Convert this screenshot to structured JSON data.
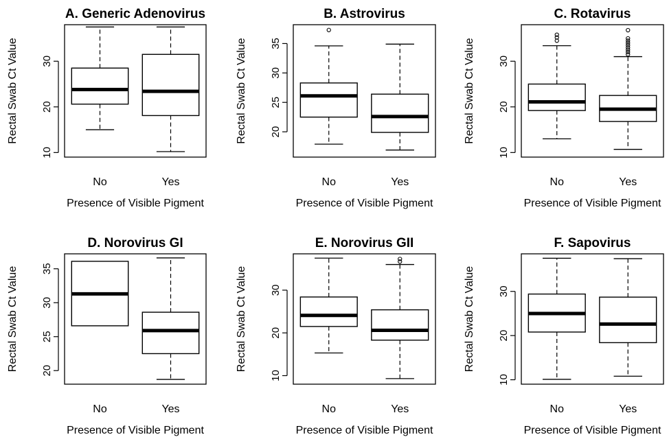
{
  "chart_data": [
    {
      "type": "boxplot",
      "title": "A. Generic Adenovirus",
      "xlabel": "Presence of Visible Pigment",
      "ylabel": "Rectal Swab Ct Value",
      "categories": [
        "No",
        "Yes"
      ],
      "ylim": [
        9,
        38
      ],
      "yticks": [
        10,
        20,
        30
      ],
      "boxes": [
        {
          "category": "No",
          "whisker_low": 15,
          "q1": 20.6,
          "median": 23.8,
          "q3": 28.5,
          "whisker_high": 37.5,
          "outliers": []
        },
        {
          "category": "Yes",
          "whisker_low": 10.2,
          "q1": 18.1,
          "median": 23.4,
          "q3": 31.5,
          "whisker_high": 37.5,
          "outliers": []
        }
      ]
    },
    {
      "type": "boxplot",
      "title": "B. Astrovirus",
      "xlabel": "Presence of Visible Pigment",
      "ylabel": "Rectal Swab Ct Value",
      "categories": [
        "No",
        "Yes"
      ],
      "ylim": [
        15.7,
        38.2
      ],
      "yticks": [
        20,
        25,
        30,
        35
      ],
      "boxes": [
        {
          "category": "No",
          "whisker_low": 17.9,
          "q1": 22.5,
          "median": 26.1,
          "q3": 28.3,
          "whisker_high": 34.6,
          "outliers": [
            37.3
          ]
        },
        {
          "category": "Yes",
          "whisker_low": 16.9,
          "q1": 19.9,
          "median": 22.6,
          "q3": 26.4,
          "whisker_high": 34.9,
          "outliers": []
        }
      ]
    },
    {
      "type": "boxplot",
      "title": "C. Rotavirus",
      "xlabel": "Presence of Visible Pigment",
      "ylabel": "Rectal Swab Ct Value",
      "categories": [
        "No",
        "Yes"
      ],
      "ylim": [
        9,
        38
      ],
      "yticks": [
        10,
        20,
        30
      ],
      "boxes": [
        {
          "category": "No",
          "whisker_low": 13,
          "q1": 19.2,
          "median": 21.1,
          "q3": 25,
          "whisker_high": 33.4,
          "outliers": [
            34.5,
            35.2,
            35.8
          ]
        },
        {
          "category": "Yes",
          "whisker_low": 10.7,
          "q1": 16.8,
          "median": 19.5,
          "q3": 22.5,
          "whisker_high": 31,
          "outliers": [
            31.5,
            32,
            32.5,
            33,
            33.5,
            34,
            34.5,
            35,
            36.8
          ]
        }
      ]
    },
    {
      "type": "boxplot",
      "title": "D. Norovirus GI",
      "xlabel": "Presence of Visible Pigment",
      "ylabel": "Rectal Swab Ct Value",
      "categories": [
        "No",
        "Yes"
      ],
      "ylim": [
        18,
        37.2
      ],
      "yticks": [
        20,
        25,
        30,
        35
      ],
      "boxes": [
        {
          "category": "No",
          "whisker_low": 26.6,
          "q1": 26.6,
          "median": 31.3,
          "q3": 36.1,
          "whisker_high": 36.1,
          "outliers": []
        },
        {
          "category": "Yes",
          "whisker_low": 18.7,
          "q1": 22.5,
          "median": 25.9,
          "q3": 28.6,
          "whisker_high": 36.6,
          "outliers": []
        }
      ]
    },
    {
      "type": "boxplot",
      "title": "E. Norovirus GII",
      "xlabel": "Presence of Visible Pigment",
      "ylabel": "Rectal Swab Ct Value",
      "categories": [
        "No",
        "Yes"
      ],
      "ylim": [
        8,
        38.5
      ],
      "yticks": [
        10,
        20,
        30
      ],
      "boxes": [
        {
          "category": "No",
          "whisker_low": 15.3,
          "q1": 21.5,
          "median": 24.1,
          "q3": 28.4,
          "whisker_high": 37.5,
          "outliers": []
        },
        {
          "category": "Yes",
          "whisker_low": 9.3,
          "q1": 18.3,
          "median": 20.6,
          "q3": 25.4,
          "whisker_high": 36,
          "outliers": [
            36.7,
            37.3
          ]
        }
      ]
    },
    {
      "type": "boxplot",
      "title": "F. Sapovirus",
      "xlabel": "Presence of Visible Pigment",
      "ylabel": "Rectal Swab Ct Value",
      "categories": [
        "No",
        "Yes"
      ],
      "ylim": [
        9,
        38.5
      ],
      "yticks": [
        10,
        20,
        30
      ],
      "boxes": [
        {
          "category": "No",
          "whisker_low": 10.1,
          "q1": 20.8,
          "median": 25,
          "q3": 29.4,
          "whisker_high": 37.5,
          "outliers": []
        },
        {
          "category": "Yes",
          "whisker_low": 10.8,
          "q1": 18.4,
          "median": 22.6,
          "q3": 28.7,
          "whisker_high": 37.4,
          "outliers": []
        }
      ]
    }
  ]
}
